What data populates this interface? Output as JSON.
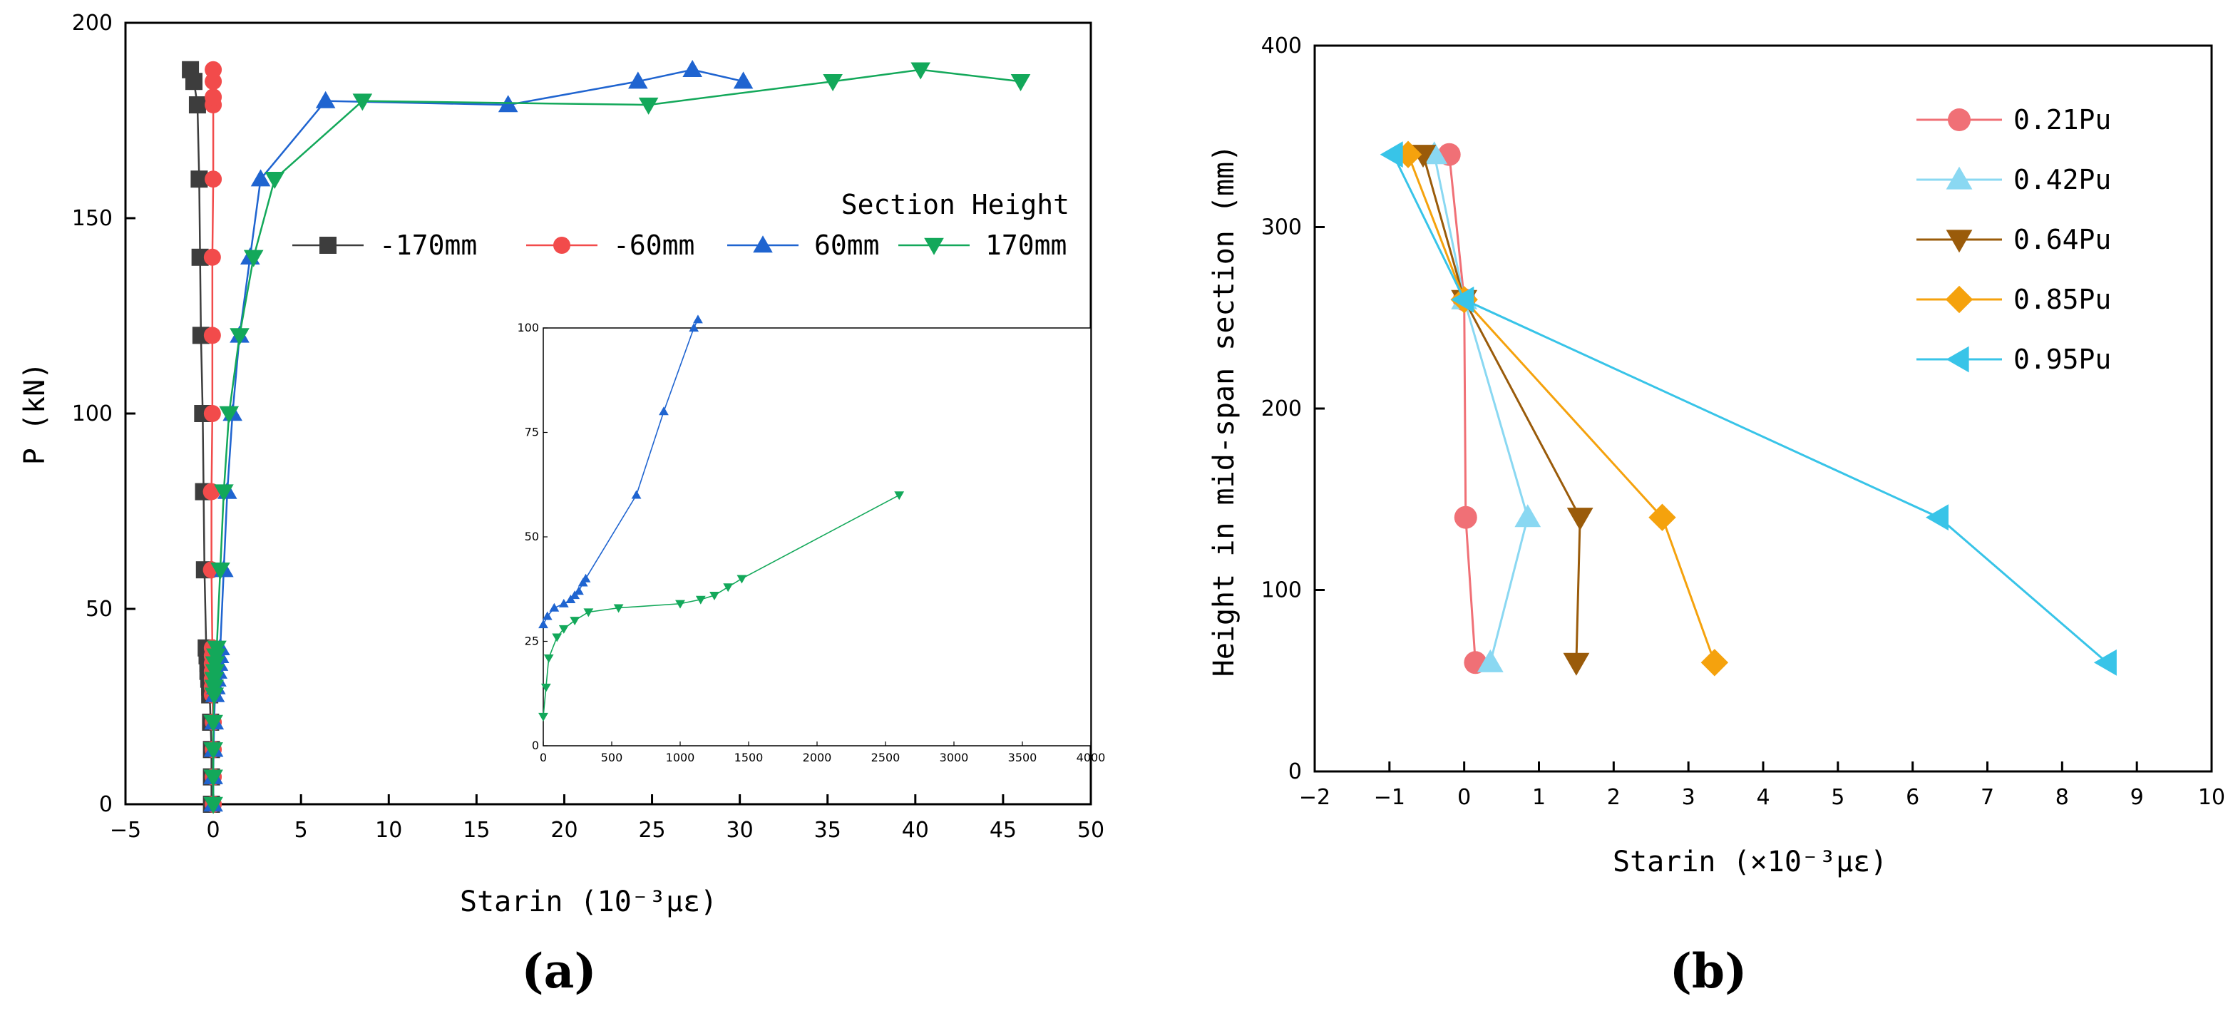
{
  "chart_data": [
    {
      "id": "a",
      "type": "line",
      "panel_label": "(a)",
      "xlabel": "Starin (10⁻³με)",
      "ylabel": "P (kN)",
      "xlim": [
        -5,
        50
      ],
      "ylim": [
        0,
        200
      ],
      "xticks": [
        -5,
        0,
        5,
        10,
        15,
        20,
        25,
        30,
        35,
        40,
        45,
        50
      ],
      "yticks": [
        0,
        50,
        100,
        150,
        200
      ],
      "legend_title": "Section Height",
      "legend_position": "top-right",
      "series": [
        {
          "name": "-170mm",
          "color": "#3d3d3d",
          "marker": "square",
          "points": [
            [
              -0.1,
              0
            ],
            [
              -0.1,
              7
            ],
            [
              -0.1,
              14
            ],
            [
              -0.15,
              21
            ],
            [
              -0.2,
              28
            ],
            [
              -0.2,
              30
            ],
            [
              -0.25,
              32
            ],
            [
              -0.3,
              34
            ],
            [
              -0.3,
              36
            ],
            [
              -0.35,
              38
            ],
            [
              -0.4,
              40
            ],
            [
              -0.5,
              60
            ],
            [
              -0.55,
              80
            ],
            [
              -0.6,
              100
            ],
            [
              -0.7,
              120
            ],
            [
              -0.75,
              140
            ],
            [
              -0.8,
              160
            ],
            [
              -0.9,
              179
            ],
            [
              -1.1,
              185
            ],
            [
              -1.3,
              188
            ]
          ]
        },
        {
          "name": "-60mm",
          "color": "#f24b4b",
          "marker": "circle",
          "points": [
            [
              0,
              0
            ],
            [
              0,
              7
            ],
            [
              0,
              14
            ],
            [
              0,
              21
            ],
            [
              -0.05,
              28
            ],
            [
              -0.05,
              30
            ],
            [
              -0.05,
              32
            ],
            [
              -0.05,
              34
            ],
            [
              -0.05,
              36
            ],
            [
              -0.05,
              38
            ],
            [
              -0.05,
              40
            ],
            [
              -0.1,
              60
            ],
            [
              -0.1,
              80
            ],
            [
              -0.05,
              100
            ],
            [
              -0.05,
              120
            ],
            [
              -0.05,
              140
            ],
            [
              0,
              160
            ],
            [
              0,
              179
            ],
            [
              0,
              181
            ],
            [
              0,
              185
            ],
            [
              0,
              188
            ]
          ]
        },
        {
          "name": "60mm",
          "color": "#1f64d0",
          "marker": "triangle-up",
          "points": [
            [
              0,
              0
            ],
            [
              0,
              7
            ],
            [
              0.02,
              14
            ],
            [
              0.05,
              21
            ],
            [
              0.1,
              28
            ],
            [
              0.15,
              30
            ],
            [
              0.2,
              32
            ],
            [
              0.25,
              34
            ],
            [
              0.3,
              36
            ],
            [
              0.35,
              38
            ],
            [
              0.4,
              40
            ],
            [
              0.6,
              60
            ],
            [
              0.8,
              80
            ],
            [
              1.1,
              100
            ],
            [
              1.5,
              120
            ],
            [
              2.1,
              140
            ],
            [
              2.7,
              160
            ],
            [
              6.4,
              180
            ],
            [
              16.8,
              179
            ],
            [
              24.2,
              185
            ],
            [
              27.3,
              188
            ],
            [
              30.2,
              185
            ]
          ]
        },
        {
          "name": "170mm",
          "color": "#13a85a",
          "marker": "triangle-down",
          "points": [
            [
              0,
              0
            ],
            [
              0,
              7
            ],
            [
              0,
              14
            ],
            [
              0,
              21
            ],
            [
              0.05,
              28
            ],
            [
              0.05,
              30
            ],
            [
              0.05,
              32
            ],
            [
              0.1,
              34
            ],
            [
              0.1,
              36
            ],
            [
              0.15,
              38
            ],
            [
              0.2,
              40
            ],
            [
              0.4,
              60
            ],
            [
              0.6,
              80
            ],
            [
              0.9,
              100
            ],
            [
              1.5,
              120
            ],
            [
              2.3,
              140
            ],
            [
              3.5,
              160
            ],
            [
              8.5,
              180
            ],
            [
              24.8,
              179
            ],
            [
              35.3,
              185
            ],
            [
              40.3,
              188
            ],
            [
              46,
              185
            ]
          ]
        }
      ],
      "inset": {
        "xlim": [
          0,
          4000
        ],
        "ylim": [
          0,
          100
        ],
        "xticks": [
          0,
          500,
          1000,
          1500,
          2000,
          2500,
          3000,
          3500,
          4000
        ],
        "yticks": [
          0,
          25,
          50,
          75,
          100
        ],
        "series": [
          {
            "name": "60mm",
            "color": "#1f64d0",
            "marker": "triangle-up",
            "points": [
              [
                0,
                29
              ],
              [
                30,
                31
              ],
              [
                80,
                33
              ],
              [
                150,
                34
              ],
              [
                200,
                35
              ],
              [
                230,
                36
              ],
              [
                260,
                37
              ],
              [
                290,
                39
              ],
              [
                310,
                40
              ],
              [
                680,
                60
              ],
              [
                880,
                80
              ],
              [
                1100,
                100
              ],
              [
                1130,
                102
              ]
            ]
          },
          {
            "name": "170mm",
            "color": "#13a85a",
            "marker": "triangle-down",
            "points": [
              [
                0,
                7
              ],
              [
                20,
                14
              ],
              [
                40,
                21
              ],
              [
                100,
                26
              ],
              [
                150,
                28
              ],
              [
                230,
                30
              ],
              [
                330,
                32
              ],
              [
                550,
                33
              ],
              [
                1000,
                34
              ],
              [
                1150,
                35
              ],
              [
                1250,
                36
              ],
              [
                1350,
                38
              ],
              [
                1450,
                40
              ],
              [
                2600,
                60
              ]
            ]
          }
        ]
      }
    },
    {
      "id": "b",
      "type": "line",
      "panel_label": "(b)",
      "xlabel": "Starin (×10⁻³με)",
      "ylabel": "Height in mid-span section (mm)",
      "xlim": [
        -2,
        10
      ],
      "ylim": [
        0,
        400
      ],
      "xticks": [
        -2,
        -1,
        0,
        1,
        2,
        3,
        4,
        5,
        6,
        7,
        8,
        9,
        10
      ],
      "yticks": [
        0,
        100,
        200,
        300,
        400
      ],
      "legend_position": "top-right",
      "series": [
        {
          "name": "0.21Pu",
          "color": "#f07076",
          "marker": "circle",
          "points": [
            [
              -0.2,
              340
            ],
            [
              0,
              260
            ],
            [
              0.02,
              140
            ],
            [
              0.15,
              60
            ]
          ]
        },
        {
          "name": "0.42Pu",
          "color": "#8ad8f2",
          "marker": "triangle-up",
          "points": [
            [
              -0.4,
              340
            ],
            [
              0,
              260
            ],
            [
              0.85,
              140
            ],
            [
              0.35,
              60
            ]
          ]
        },
        {
          "name": "0.64Pu",
          "color": "#9a5b0a",
          "marker": "triangle-down",
          "points": [
            [
              -0.55,
              340
            ],
            [
              0,
              260
            ],
            [
              1.55,
              140
            ],
            [
              1.5,
              60
            ]
          ]
        },
        {
          "name": "0.85Pu",
          "color": "#f5a20d",
          "marker": "diamond",
          "points": [
            [
              -0.75,
              340
            ],
            [
              0,
              260
            ],
            [
              2.65,
              140
            ],
            [
              3.35,
              60
            ]
          ]
        },
        {
          "name": "0.95Pu",
          "color": "#38c4e8",
          "marker": "triangle-left",
          "points": [
            [
              -0.95,
              340
            ],
            [
              0,
              260
            ],
            [
              6.35,
              140
            ],
            [
              8.6,
              60
            ]
          ]
        }
      ]
    }
  ]
}
